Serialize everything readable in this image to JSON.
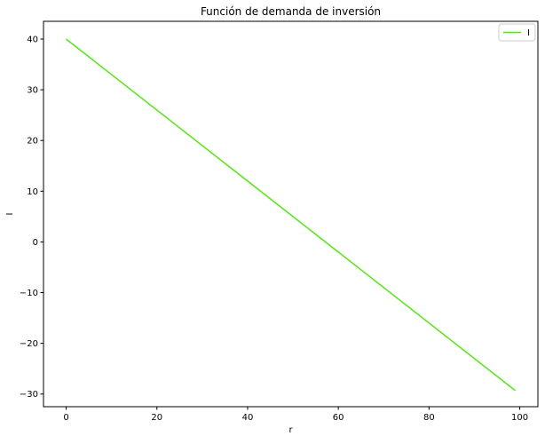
{
  "chart_data": {
    "type": "line",
    "title": "Función de demanda de inversión",
    "xlabel": "r",
    "ylabel": "I",
    "xlim": [
      -5,
      104
    ],
    "ylim": [
      -32.5,
      43.5
    ],
    "xticks": [
      0,
      20,
      40,
      60,
      80,
      100
    ],
    "yticks": [
      -30,
      -20,
      -10,
      0,
      10,
      20,
      30,
      40
    ],
    "grid": false,
    "legend_position": "top-right",
    "series": [
      {
        "name": "I",
        "color": "#55e615",
        "x": [
          0,
          99
        ],
        "y": [
          40,
          -29.3
        ]
      }
    ]
  }
}
